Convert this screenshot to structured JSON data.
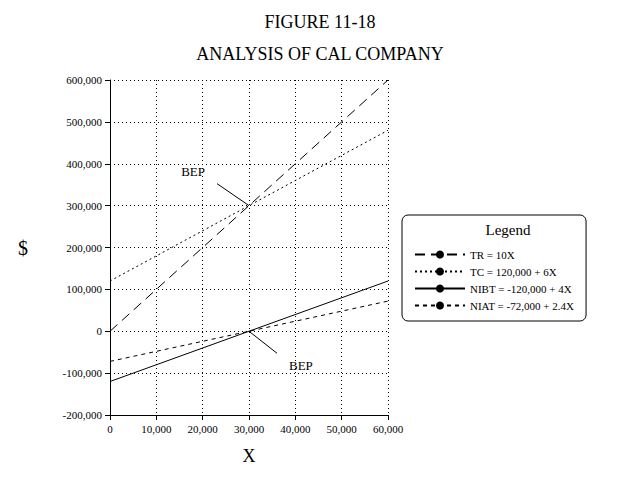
{
  "chart_data": {
    "type": "line",
    "title": "FIGURE 11-18",
    "subtitle": "ANALYSIS OF CAL COMPANY",
    "x_label": "X",
    "y_label": "$",
    "legend_title": "Legend",
    "x": [
      0,
      60000
    ],
    "series": [
      {
        "name": "TR = 10X",
        "color": "#000000",
        "line_style": "long_dash",
        "values": [
          0,
          600000
        ]
      },
      {
        "name": "TC = 120,000 + 6X",
        "color": "#000000",
        "line_style": "dotted",
        "values": [
          120000,
          480000
        ]
      },
      {
        "name": "NIBT = -120,000 + 4X",
        "color": "#000000",
        "line_style": "solid",
        "values": [
          -120000,
          120000
        ]
      },
      {
        "name": "NIAT = -72,000 + 2.4X",
        "color": "#000000",
        "line_style": "dashed",
        "values": [
          -72000,
          72000
        ]
      }
    ],
    "xlim": [
      0,
      60000
    ],
    "xticks": [
      0,
      {
        "value": 10000,
        "label": "10,000"
      },
      {
        "value": 20000,
        "label": "20,000"
      },
      {
        "value": 30000,
        "label": "30,000"
      },
      {
        "value": 40000,
        "label": "40,000"
      },
      {
        "value": 50000,
        "label": "50,000"
      },
      {
        "value": 60000,
        "label": "60,000"
      }
    ],
    "ylim": [
      -200000,
      600000
    ],
    "yticks": [
      {
        "value": -200000,
        "label": "-200,000"
      },
      {
        "value": -100000,
        "label": "-100,000"
      },
      0,
      {
        "value": 100000,
        "label": "100,000"
      },
      {
        "value": 200000,
        "label": "200,000"
      },
      {
        "value": 300000,
        "label": "300,000"
      },
      {
        "value": 400000,
        "label": "400,000"
      },
      {
        "value": 500000,
        "label": "500,000"
      },
      {
        "value": 600000,
        "label": "600,000"
      }
    ],
    "annotations": [
      {
        "text": "BEP",
        "x": 30000,
        "y": 300000
      },
      {
        "text": "BEP",
        "x": 30000,
        "y": 0
      }
    ],
    "grid": true,
    "legend": "right"
  }
}
